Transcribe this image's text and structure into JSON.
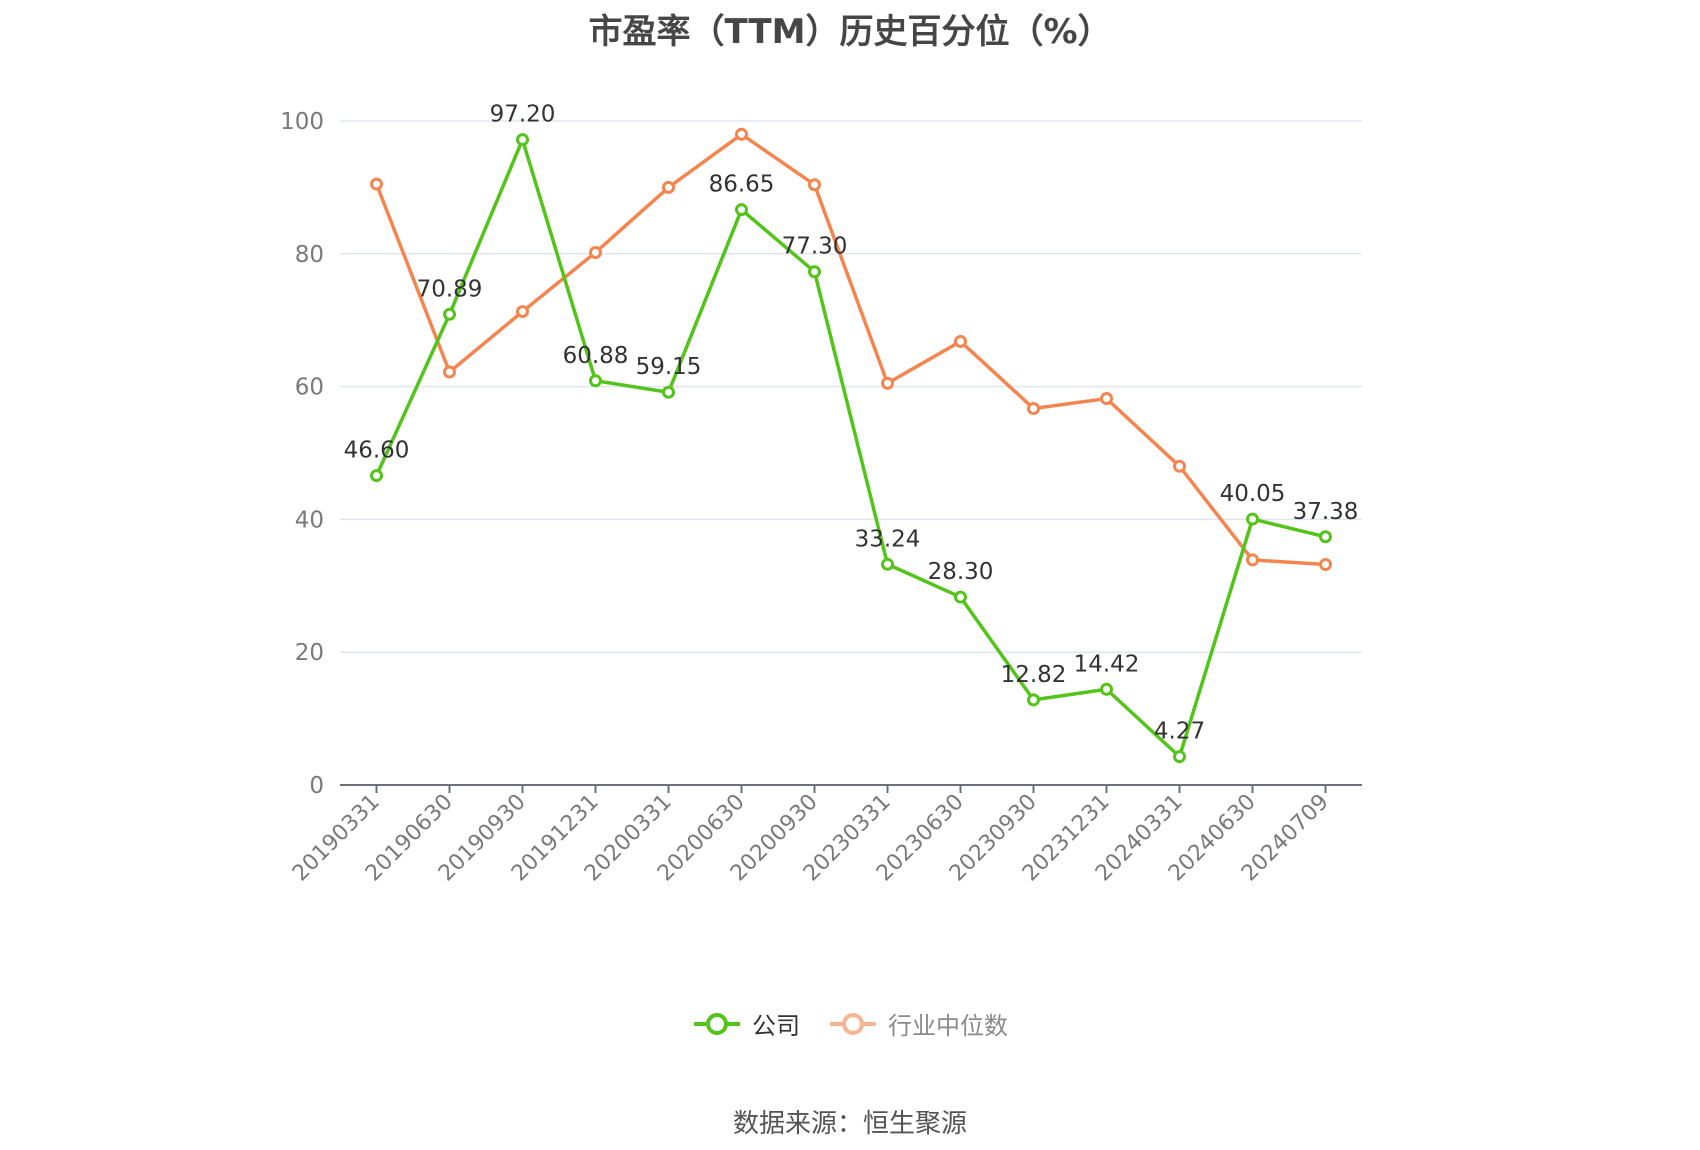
{
  "chart_data": {
    "type": "line",
    "title": "市盈率（TTM）历史百分位（%）",
    "xlabel": "",
    "ylabel": "",
    "categories": [
      "20190331",
      "20190630",
      "20190930",
      "20191231",
      "20200331",
      "20200630",
      "20200930",
      "20230331",
      "20230630",
      "20230930",
      "20231231",
      "20240331",
      "20240630",
      "20240709"
    ],
    "ylim": [
      0,
      100
    ],
    "yticks": [
      0,
      20,
      40,
      60,
      80,
      100
    ],
    "grid": true,
    "legend_position": "bottom",
    "series": [
      {
        "name": "公司",
        "color": "#52c41a",
        "show_labels": true,
        "values": [
          46.6,
          70.89,
          97.2,
          60.88,
          59.15,
          86.65,
          77.3,
          33.24,
          28.3,
          12.82,
          14.42,
          4.27,
          40.05,
          37.38
        ],
        "labels": [
          "46.60",
          "70.89",
          "97.20",
          "60.88",
          "59.15",
          "86.65",
          "77.30",
          "33.24",
          "28.30",
          "12.82",
          "14.42",
          "4.27",
          "40.05",
          "37.38"
        ]
      },
      {
        "name": "行业中位数",
        "color": "#f5854f",
        "show_labels": false,
        "values": [
          90.5,
          62.2,
          71.3,
          80.2,
          90.0,
          98.0,
          90.4,
          60.5,
          66.8,
          56.7,
          58.2,
          48.0,
          33.9,
          33.2
        ]
      }
    ]
  },
  "source": "数据来源：恒生聚源"
}
